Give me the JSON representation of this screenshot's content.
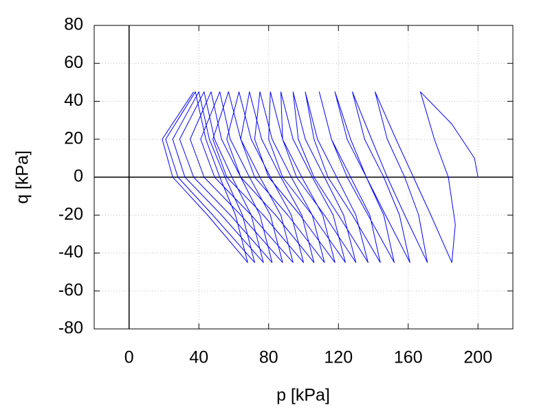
{
  "chart_data": {
    "type": "line",
    "xlabel": "p [kPa]",
    "ylabel": "q [kPa]",
    "color": "#0000ff",
    "xlim": [
      -20,
      220
    ],
    "ylim": [
      -80,
      80
    ],
    "xticks": [
      0,
      40,
      80,
      120,
      160,
      200
    ],
    "yticks": [
      -80,
      -60,
      -40,
      -20,
      0,
      20,
      40,
      60,
      80
    ],
    "grid": true,
    "zero_lines": true,
    "x": [
      200,
      198,
      185,
      167,
      175,
      183,
      187,
      185,
      173,
      163,
      153,
      141,
      148,
      158,
      166,
      171,
      158,
      148,
      139,
      128,
      135,
      146,
      155,
      161,
      147,
      136,
      127,
      118,
      125,
      136,
      146,
      152,
      137,
      125,
      116,
      109,
      116,
      127,
      138,
      144,
      128,
      114,
      106,
      101,
      108,
      119,
      130,
      137,
      120,
      106,
      97,
      94,
      101,
      112,
      123,
      130,
      112,
      96,
      88,
      87,
      94,
      105,
      117,
      124,
      105,
      88,
      80,
      81,
      88,
      99,
      111,
      118,
      98,
      80,
      72,
      75,
      82,
      93,
      105,
      112,
      91,
      72,
      64,
      69,
      76,
      87,
      99,
      106,
      84,
      64,
      56,
      63,
      70,
      81,
      93,
      100,
      77,
      56,
      48,
      57,
      64,
      75,
      87,
      94,
      70,
      49,
      41,
      52,
      58,
      69,
      81,
      88,
      64,
      43,
      35,
      47,
      53,
      64,
      75,
      82,
      58,
      37,
      29,
      43,
      49,
      59,
      70,
      77,
      53,
      32,
      25,
      40,
      46,
      55,
      65,
      72,
      48,
      28,
      21,
      38,
      44,
      52,
      61,
      68,
      45,
      25,
      19,
      37
    ],
    "values": [
      0,
      10,
      28,
      45,
      20,
      0,
      -25,
      -45,
      -20,
      0,
      20,
      45,
      20,
      0,
      -20,
      -45,
      -20,
      0,
      20,
      45,
      20,
      0,
      -20,
      -45,
      -20,
      0,
      20,
      45,
      20,
      0,
      -20,
      -45,
      -20,
      0,
      20,
      45,
      20,
      0,
      -20,
      -45,
      -20,
      0,
      20,
      45,
      20,
      0,
      -20,
      -45,
      -20,
      0,
      20,
      45,
      20,
      0,
      -20,
      -45,
      -20,
      0,
      20,
      45,
      20,
      0,
      -20,
      -45,
      -20,
      0,
      20,
      45,
      20,
      0,
      -20,
      -45,
      -20,
      0,
      20,
      45,
      20,
      0,
      -20,
      -45,
      -20,
      0,
      20,
      45,
      20,
      0,
      -20,
      -45,
      -20,
      0,
      20,
      45,
      20,
      0,
      -20,
      -45,
      -20,
      0,
      20,
      45,
      20,
      0,
      -20,
      -45,
      -20,
      0,
      20,
      45,
      20,
      0,
      -20,
      -45,
      -20,
      0,
      20,
      45,
      20,
      0,
      -20,
      -45,
      -20,
      0,
      20,
      45,
      20,
      0,
      -20,
      -45,
      -20,
      0,
      20,
      45,
      20,
      0,
      -20,
      -45,
      -20,
      0,
      20,
      45,
      20,
      0,
      -20,
      -45,
      -20,
      0,
      20,
      45
    ]
  }
}
